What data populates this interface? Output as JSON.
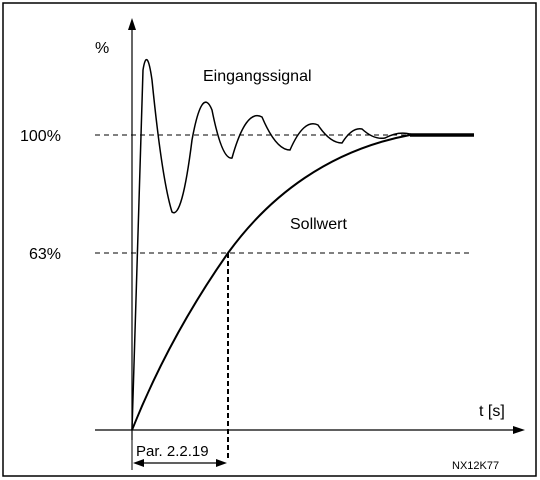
{
  "axis": {
    "y_unit": "%",
    "x_label": "t [s]",
    "y_levels": [
      "100%",
      "63%"
    ]
  },
  "curves": {
    "input": "Eingangssignal",
    "setpoint": "Sollwert"
  },
  "parameter": "Par. 2.2.19",
  "code": "NX12K77"
}
